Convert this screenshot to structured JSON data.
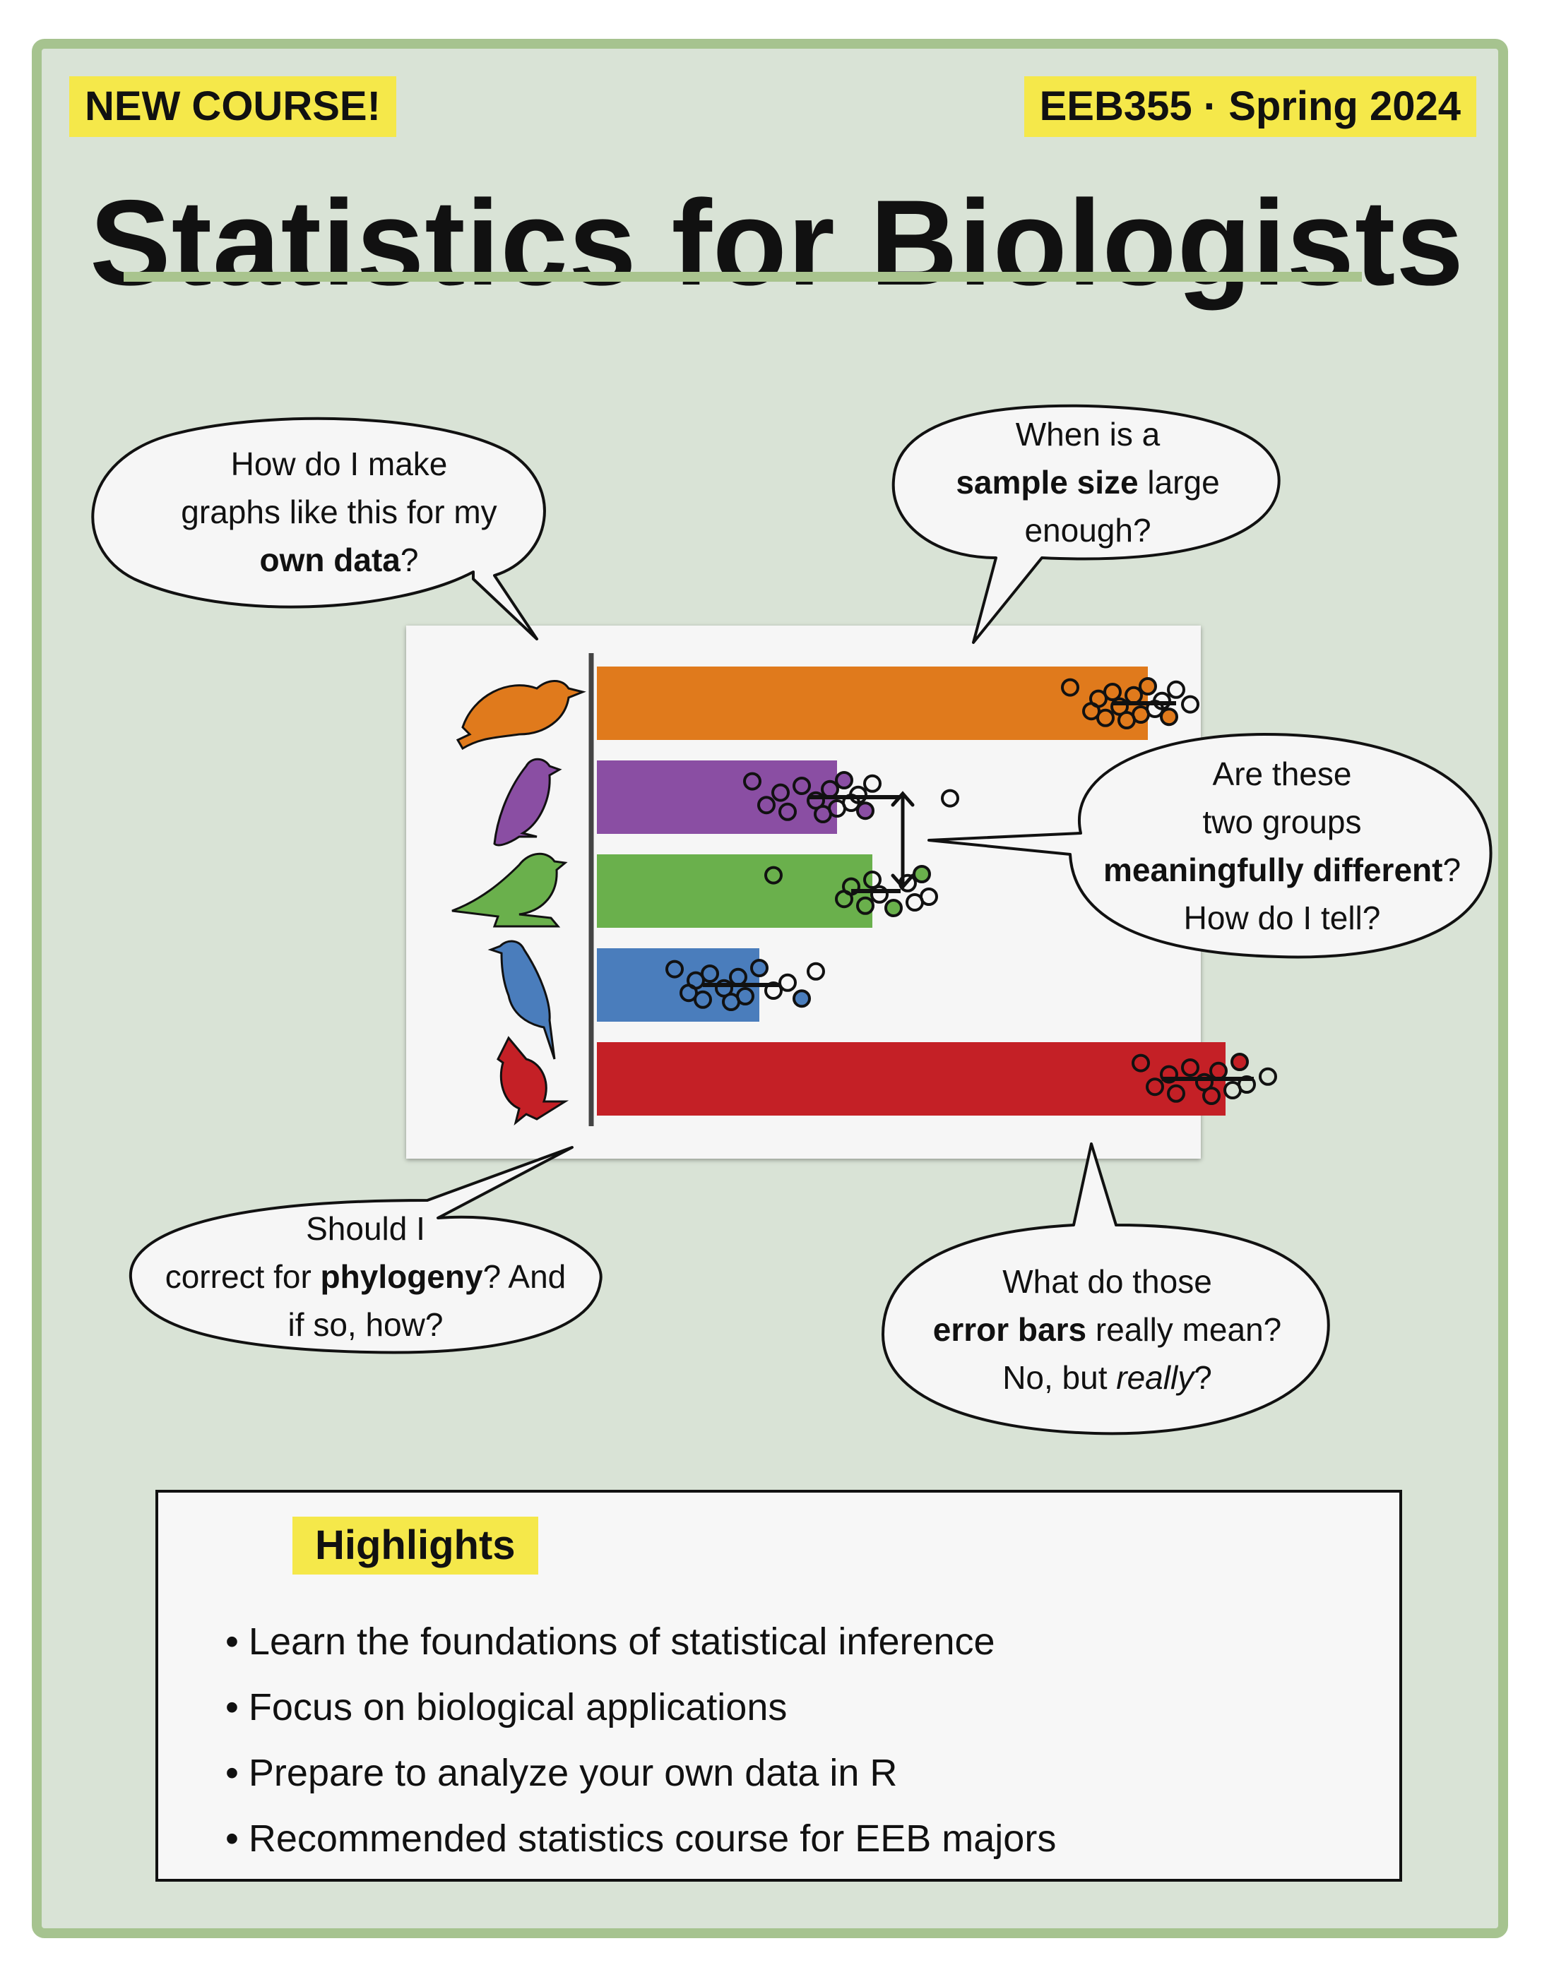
{
  "tags": {
    "left": "NEW COURSE!",
    "right": "EEB355 · Spring 2024"
  },
  "title": "Statistics for Biologists",
  "bubbles": {
    "top_left": {
      "line1": "How do I make",
      "line2": "graphs like this for my",
      "line3_bold": "own data",
      "line3_end": "?"
    },
    "top_right": {
      "line1": "When is a",
      "line2_bold": "sample size",
      "line2_end": " large",
      "line3": "enough?"
    },
    "middle_right": {
      "line1": "Are these",
      "line2": "two groups",
      "line3_bold": "meaningfully different",
      "line3_end": "?",
      "line4": "How do I tell?"
    },
    "bottom_left": {
      "line1": "Should I",
      "line2_start": "correct for ",
      "line2_bold": "phylogeny",
      "line2_end": "? And",
      "line3": "if so, how?"
    },
    "bottom_right": {
      "line1": "What do those",
      "line2_bold": "error bars",
      "line2_end": " really mean?",
      "line3_start": "No, but ",
      "line3_italic": "really",
      "line3_end": "?"
    }
  },
  "highlights": {
    "heading": "Highlights",
    "items": [
      "Learn the foundations of statistical inference",
      "Focus on biological applications",
      "Prepare to analyze your own data in R",
      "Recommended statistics course for EEB majors"
    ]
  },
  "chart_data": {
    "type": "bar",
    "orientation": "horizontal",
    "categories": [
      "orange bird",
      "purple bird",
      "green bird",
      "blue bird",
      "red cardinal"
    ],
    "values": [
      0.78,
      0.34,
      0.39,
      0.23,
      0.89
    ],
    "colors": [
      "#e07a1c",
      "#8a4ea3",
      "#6ab04c",
      "#4a7dbc",
      "#c42026"
    ],
    "xlim": [
      0,
      1
    ],
    "points": [
      [
        0.67,
        0.7,
        0.71,
        0.72,
        0.73,
        0.74,
        0.75,
        0.76,
        0.77,
        0.78,
        0.79,
        0.8,
        0.81,
        0.82,
        0.84
      ],
      [
        0.22,
        0.24,
        0.26,
        0.27,
        0.29,
        0.31,
        0.32,
        0.33,
        0.34,
        0.35,
        0.36,
        0.37,
        0.38,
        0.39,
        0.5
      ],
      [
        0.25,
        0.35,
        0.36,
        0.38,
        0.39,
        0.4,
        0.42,
        0.44,
        0.45,
        0.46,
        0.47
      ],
      [
        0.11,
        0.13,
        0.14,
        0.15,
        0.16,
        0.18,
        0.19,
        0.2,
        0.21,
        0.23,
        0.25,
        0.27,
        0.29,
        0.31
      ],
      [
        0.77,
        0.79,
        0.81,
        0.82,
        0.84,
        0.86,
        0.87,
        0.88,
        0.9,
        0.91,
        0.92,
        0.95
      ]
    ],
    "error_bars": [
      [
        0.73,
        0.82
      ],
      [
        0.3,
        0.43
      ],
      [
        0.36,
        0.43
      ],
      [
        0.15,
        0.26
      ],
      [
        0.8,
        0.93
      ]
    ],
    "grid": false,
    "legend": "none"
  }
}
